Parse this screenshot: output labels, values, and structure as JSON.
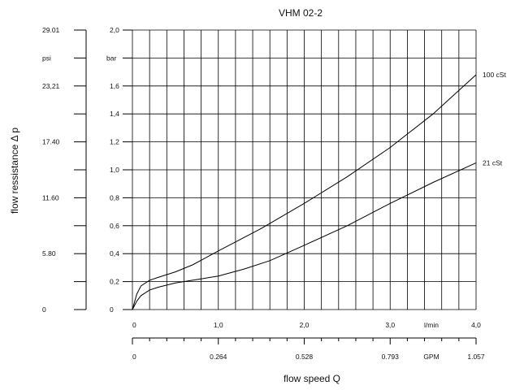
{
  "chart_data": {
    "type": "line",
    "title": "VHM 02-2",
    "xlabel": "flow speed Q",
    "ylabel": "flow ressistance Δ p",
    "x_unit": "l/min",
    "y_unit": "bar",
    "xlim": [
      0,
      4.0
    ],
    "ylim": [
      0,
      2.0
    ],
    "grid": true,
    "x_ticks": [
      "0",
      "1,0",
      "2,0",
      "3,0",
      "4,0"
    ],
    "y_ticks": [
      "0",
      "0,2",
      "0,4",
      "0,6",
      "0,8",
      "1,0",
      "1,2",
      "1,4",
      "1,6",
      "2,0"
    ],
    "gpm_axis": {
      "unit": "GPM",
      "ticks": [
        "0",
        "0.264",
        "0.528",
        "0.793",
        "1.057"
      ]
    },
    "psi_axis": {
      "unit": "psi",
      "ticks": [
        "0",
        "5.80",
        "11.60",
        "17.40",
        "23,21",
        "29.01"
      ]
    },
    "series": [
      {
        "name": "100 cSt",
        "x": [
          0,
          0.05,
          0.1,
          0.2,
          0.3,
          0.5,
          0.7,
          1.0,
          1.5,
          2.0,
          2.5,
          3.0,
          3.5,
          4.0
        ],
        "y": [
          0,
          0.11,
          0.17,
          0.21,
          0.23,
          0.27,
          0.32,
          0.42,
          0.58,
          0.76,
          0.95,
          1.16,
          1.4,
          1.68
        ]
      },
      {
        "name": "21 cSt",
        "x": [
          0,
          0.05,
          0.1,
          0.2,
          0.3,
          0.5,
          0.7,
          0.8,
          1.0,
          1.3,
          1.6,
          2.0,
          2.5,
          3.0,
          3.5,
          4.0
        ],
        "y": [
          0,
          0.06,
          0.1,
          0.14,
          0.16,
          0.19,
          0.21,
          0.22,
          0.24,
          0.29,
          0.35,
          0.46,
          0.6,
          0.76,
          0.91,
          1.05
        ]
      }
    ]
  }
}
